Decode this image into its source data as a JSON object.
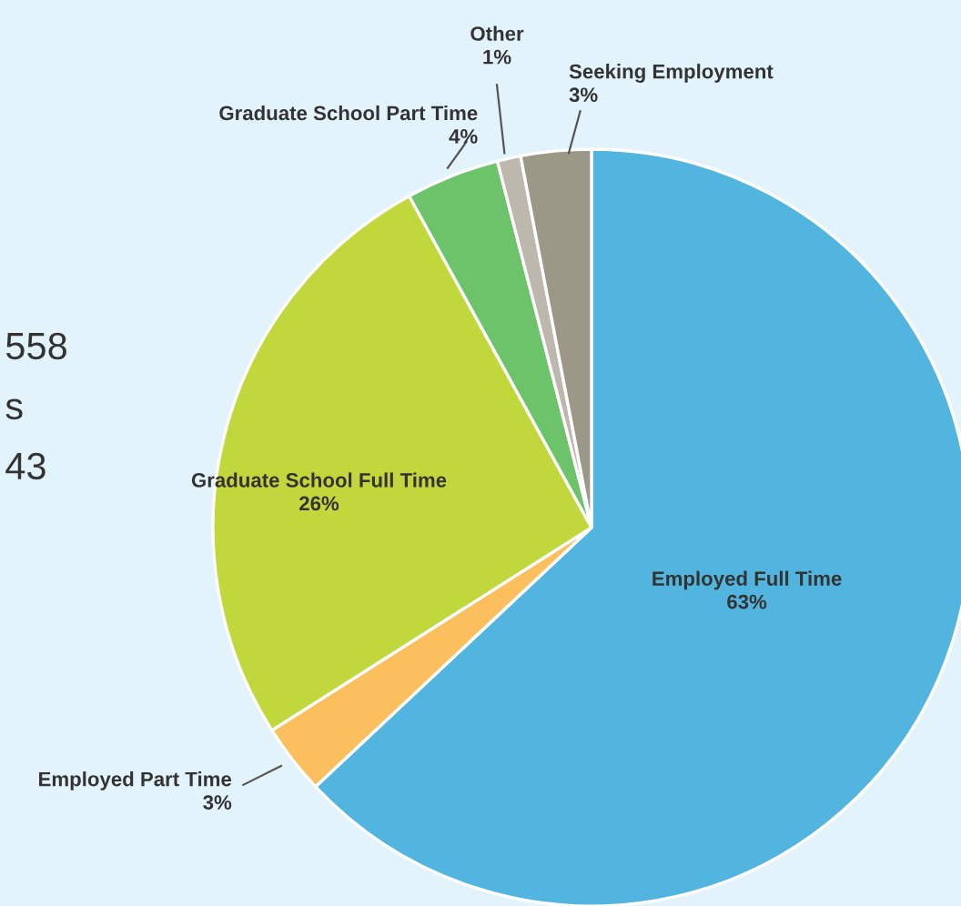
{
  "chart_data": {
    "type": "pie",
    "categories": [
      "Employed Full Time",
      "Employed Part Time",
      "Graduate School Full Time",
      "Graduate School Part Time",
      "Other",
      "Seeking Employment"
    ],
    "values": [
      63,
      3,
      26,
      4,
      1,
      3
    ],
    "colors": [
      "#52b5e0",
      "#fbbf5e",
      "#c0d83c",
      "#6cc36a",
      "#bdb8ae",
      "#9c9888"
    ],
    "value_labels": [
      "63%",
      "3%",
      "26%",
      "4%",
      "1%",
      "3%"
    ],
    "annotations": [
      "558",
      "s",
      "43"
    ]
  }
}
